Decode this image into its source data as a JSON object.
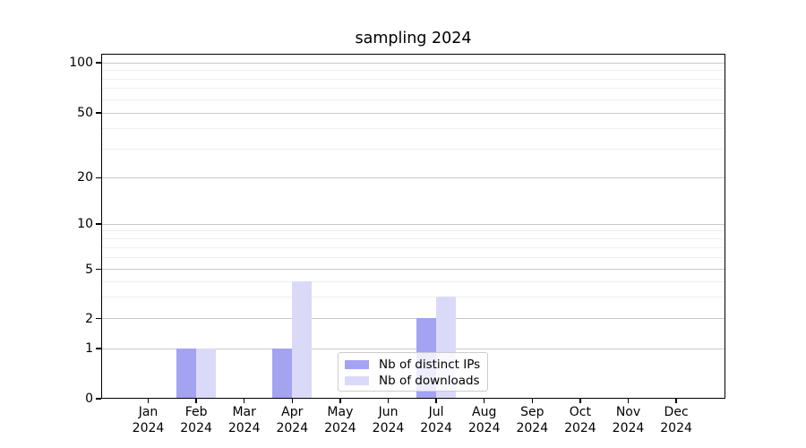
{
  "chart_data": {
    "type": "bar",
    "title": "sampling 2024",
    "x": {
      "months": [
        "Jan",
        "Feb",
        "Mar",
        "Apr",
        "May",
        "Jun",
        "Jul",
        "Aug",
        "Sep",
        "Oct",
        "Nov",
        "Dec"
      ],
      "year": "2024"
    },
    "series": [
      {
        "name": "Nb of distinct IPs",
        "color": "#a3a3f2",
        "values": [
          0,
          1,
          0,
          1,
          0,
          0,
          2,
          0,
          0,
          0,
          0,
          0
        ]
      },
      {
        "name": "Nb of downloads",
        "color": "#dadaf8",
        "values": [
          0,
          1,
          0,
          4,
          0,
          0,
          3,
          0,
          0,
          0,
          0,
          0
        ]
      }
    ],
    "y_axis": {
      "scale": "symlog",
      "major_ticks": [
        0,
        1,
        2,
        5,
        10,
        20,
        50,
        100
      ],
      "minor_ticks": [
        3,
        4,
        6,
        7,
        8,
        9,
        30,
        40,
        60,
        70,
        80,
        90
      ]
    },
    "legend": {
      "entries": [
        "Nb of distinct IPs",
        "Nb of downloads"
      ],
      "position": "lower center"
    },
    "grid": {
      "horizontal": true,
      "major_color": "#c9c9c9",
      "minor_color": "#efefef"
    }
  }
}
